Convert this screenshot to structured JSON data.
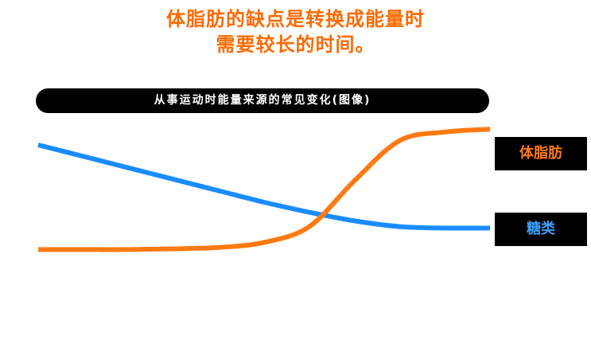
{
  "title": {
    "line1": "体脂肪的缺点是转换成能量时",
    "line2": "需要较长的时间。"
  },
  "chart_data": {
    "type": "line",
    "title": "从事运动时能量来源的常见变化(图像)",
    "xlabel": "",
    "ylabel": "",
    "x": [
      0,
      10,
      20,
      30,
      40,
      50,
      60,
      70,
      80,
      90,
      100
    ],
    "ylim": [
      0,
      100
    ],
    "grid": false,
    "series": [
      {
        "name": "体脂肪",
        "color": "#ff7a12",
        "values": [
          12,
          12,
          12,
          12.5,
          13.5,
          17,
          28,
          60,
          88,
          94,
          96
        ]
      },
      {
        "name": "糖类",
        "color": "#1a8cff",
        "values": [
          85,
          77,
          69,
          61,
          53,
          45,
          38,
          32,
          28,
          27,
          27
        ]
      }
    ]
  }
}
